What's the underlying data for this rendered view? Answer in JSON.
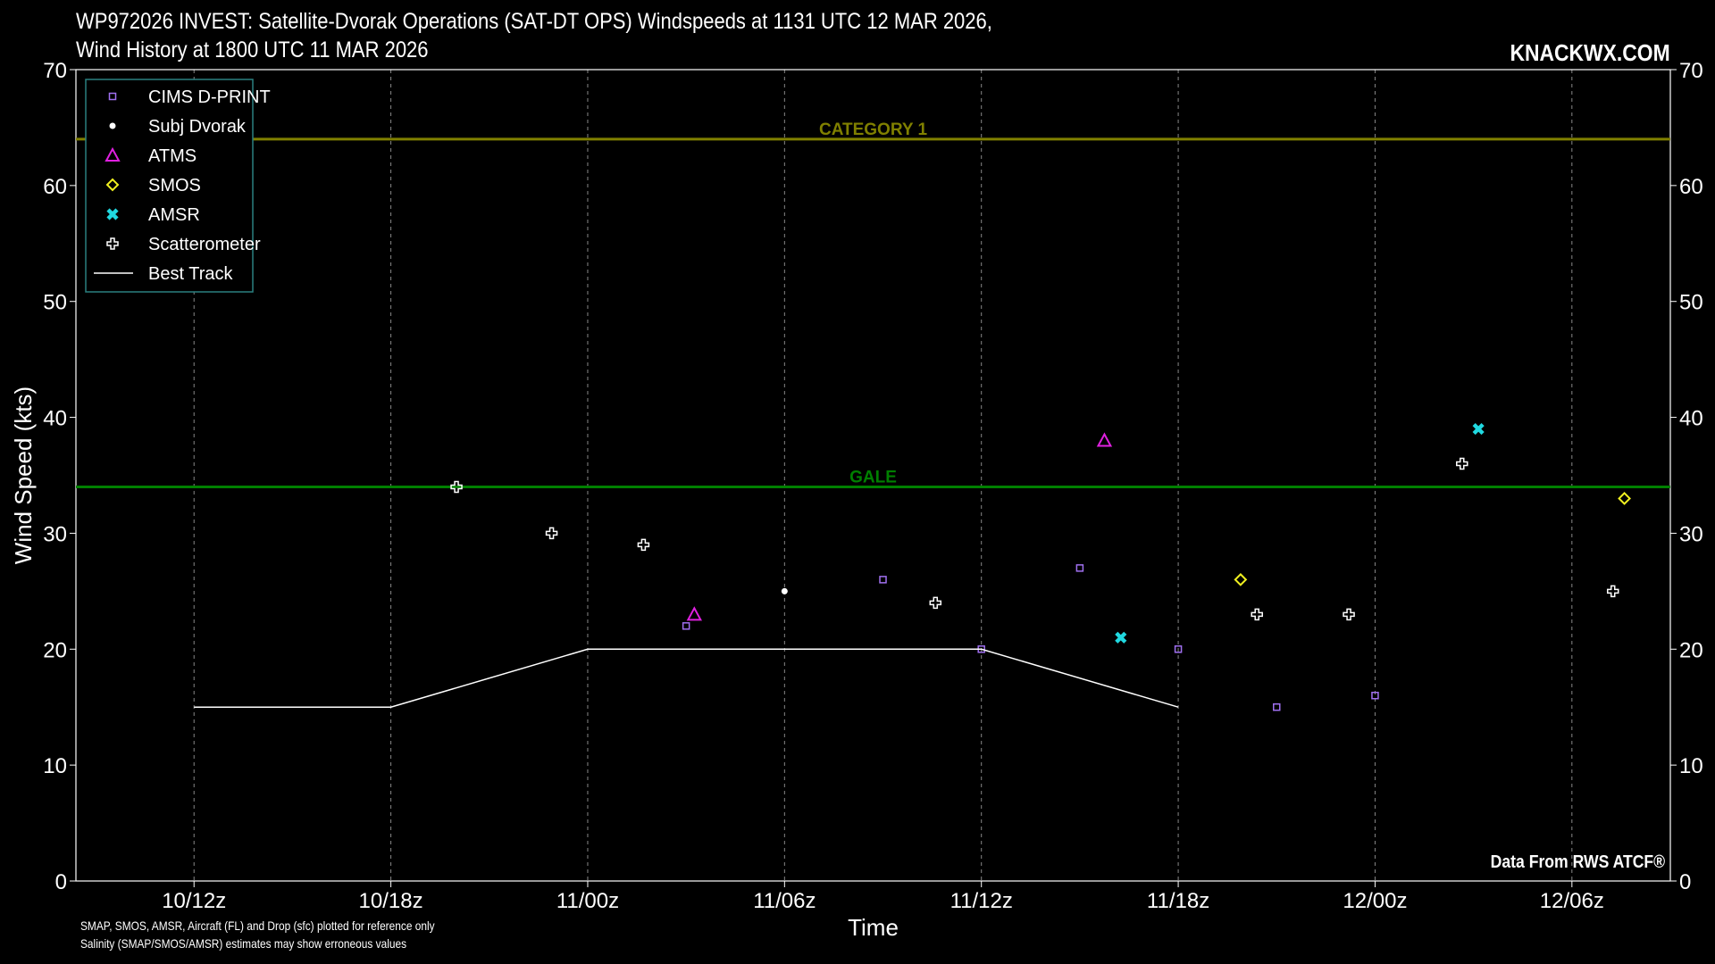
{
  "title_line1": "WP972026 INVEST: Satellite-Dvorak Operations (SAT-DT OPS) Windspeeds at 1131 UTC 12 MAR 2026,",
  "title_line2": "Wind History at 1800 UTC 11 MAR 2026",
  "watermark": "KNACKWX.COM",
  "source_text": "Data From RWS ATCF®",
  "notes": [
    "SMAP, SMOS, AMSR, Aircraft (FL) and Drop (sfc) plotted for reference only",
    "Salinity (SMAP/SMOS/AMSR) estimates may show erroneous values"
  ],
  "colors": {
    "background": "#000000",
    "cims": "#a070f0",
    "atms": "#e020e0",
    "smos": "#f0f020",
    "amsr": "#20d8e0",
    "category1": "#808000",
    "gale": "#008000",
    "legend_border": "#2a8080"
  },
  "chart_data": {
    "type": "scatter",
    "xlabel": "Time",
    "ylabel": "Wind Speed (kts)",
    "ylim": [
      0,
      70
    ],
    "yticks": [
      0,
      10,
      20,
      30,
      40,
      50,
      60,
      70
    ],
    "x_unit": "hours since 10/12z",
    "xlim": [
      -3.6,
      45
    ],
    "xticks": [
      {
        "x": 0,
        "label": "10/12z"
      },
      {
        "x": 6,
        "label": "10/18z"
      },
      {
        "x": 12,
        "label": "11/00z"
      },
      {
        "x": 18,
        "label": "11/06z"
      },
      {
        "x": 24,
        "label": "11/12z"
      },
      {
        "x": 30,
        "label": "11/18z"
      },
      {
        "x": 36,
        "label": "12/00z"
      },
      {
        "x": 42,
        "label": "12/06z"
      }
    ],
    "grid": "vertical-dashed",
    "legend_position": "top-left",
    "reference_lines": [
      {
        "name": "CATEGORY 1",
        "y": 64,
        "color": "#808000"
      },
      {
        "name": "GALE",
        "y": 34,
        "color": "#008000"
      }
    ],
    "series": [
      {
        "name": "CIMS D-PRINT",
        "marker": "square",
        "color": "#a070f0",
        "points": [
          [
            15,
            22
          ],
          [
            21,
            26
          ],
          [
            24,
            20
          ],
          [
            27,
            27
          ],
          [
            30,
            20
          ],
          [
            33,
            15
          ],
          [
            36,
            16
          ]
        ]
      },
      {
        "name": "Subj Dvorak",
        "marker": "dot",
        "color": "#ffffff",
        "points": [
          [
            18,
            25
          ]
        ]
      },
      {
        "name": "ATMS",
        "marker": "triangle",
        "color": "#e020e0",
        "points": [
          [
            15.25,
            23
          ],
          [
            27.75,
            38
          ]
        ]
      },
      {
        "name": "SMOS",
        "marker": "diamond",
        "color": "#f0f020",
        "points": [
          [
            31.9,
            26
          ],
          [
            43.6,
            33
          ]
        ]
      },
      {
        "name": "AMSR",
        "marker": "x",
        "color": "#20d8e0",
        "points": [
          [
            28.25,
            21
          ],
          [
            39.15,
            39
          ]
        ]
      },
      {
        "name": "Scatterometer",
        "marker": "plus",
        "color": "#ffffff",
        "points": [
          [
            8,
            34
          ],
          [
            10.9,
            30
          ],
          [
            13.7,
            29
          ],
          [
            22.6,
            24
          ],
          [
            32.4,
            23
          ],
          [
            35.2,
            23
          ],
          [
            38.65,
            36
          ],
          [
            43.25,
            25
          ]
        ]
      },
      {
        "name": "Best Track",
        "marker": "line",
        "color": "#ffffff",
        "points": [
          [
            0,
            15
          ],
          [
            6,
            15
          ],
          [
            12,
            20
          ],
          [
            18,
            20
          ],
          [
            24,
            20
          ],
          [
            30,
            15
          ]
        ]
      }
    ]
  }
}
